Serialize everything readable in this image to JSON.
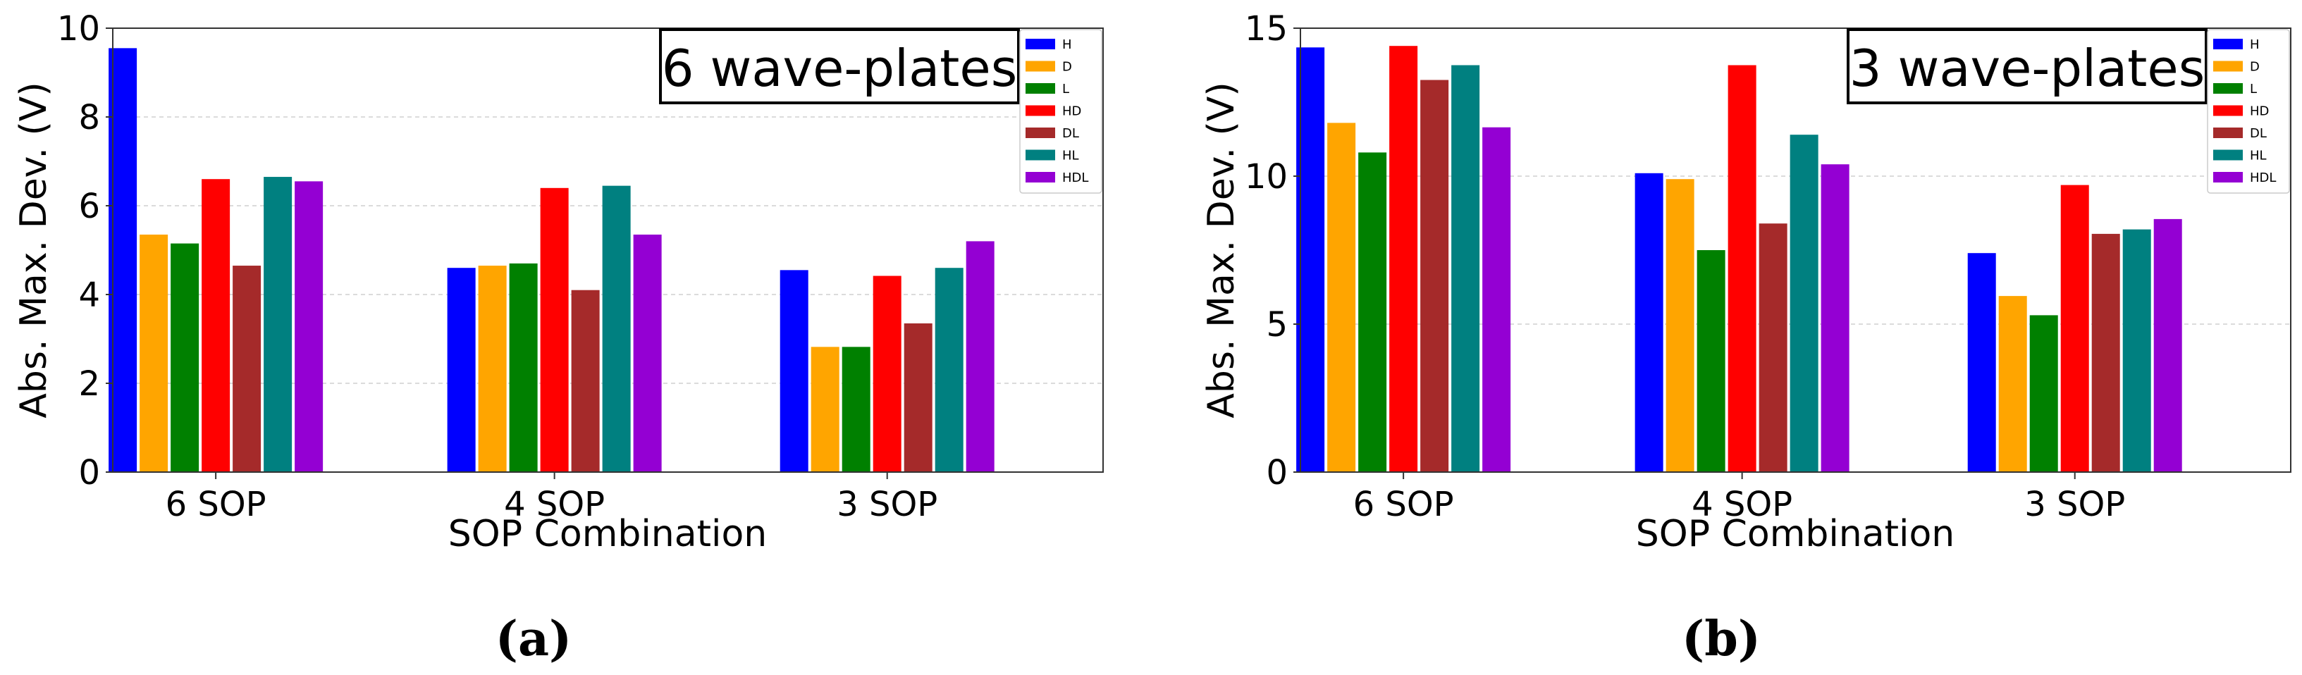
{
  "figure": {
    "captions": [
      "(a)",
      "(b)"
    ]
  },
  "legend_entries": [
    "H",
    "D",
    "L",
    "HD",
    "DL",
    "HL",
    "HDL"
  ],
  "colors": {
    "H": "#0000ff",
    "D": "#ffa500",
    "L": "#008000",
    "HD": "#ff0000",
    "DL": "#a52a2a",
    "HL": "#008080",
    "HDL": "#9400d3"
  },
  "chart_data": [
    {
      "type": "bar",
      "annotation": "6 wave-plates",
      "xlabel": "SOP Combination",
      "ylabel": "Abs. Max. Dev. (V)",
      "ylim": [
        0,
        10
      ],
      "yticks": [
        "0",
        "2",
        "4",
        "6",
        "8",
        "10"
      ],
      "categories": [
        "6 SOP",
        "4 SOP",
        "3 SOP"
      ],
      "grid": "horizontal-dashed",
      "legend_position": "top-right",
      "series": [
        {
          "name": "H",
          "values": [
            9.55,
            4.6,
            4.55
          ]
        },
        {
          "name": "D",
          "values": [
            5.35,
            4.65,
            2.82
          ]
        },
        {
          "name": "L",
          "values": [
            5.15,
            4.7,
            2.82
          ]
        },
        {
          "name": "HD",
          "values": [
            6.6,
            6.4,
            4.42
          ]
        },
        {
          "name": "DL",
          "values": [
            4.65,
            4.1,
            3.35
          ]
        },
        {
          "name": "HL",
          "values": [
            6.65,
            6.45,
            4.6
          ]
        },
        {
          "name": "HDL",
          "values": [
            6.55,
            5.35,
            5.2
          ]
        }
      ]
    },
    {
      "type": "bar",
      "annotation": "3 wave-plates",
      "xlabel": "SOP Combination",
      "ylabel": "Abs. Max. Dev. (V)",
      "ylim": [
        0,
        15
      ],
      "yticks": [
        "0",
        "5",
        "10",
        "15"
      ],
      "categories": [
        "6 SOP",
        "4 SOP",
        "3 SOP"
      ],
      "grid": "horizontal-dashed",
      "legend_position": "top-right",
      "series": [
        {
          "name": "H",
          "values": [
            14.35,
            10.1,
            7.4
          ]
        },
        {
          "name": "D",
          "values": [
            11.8,
            9.9,
            5.95
          ]
        },
        {
          "name": "L",
          "values": [
            10.8,
            7.5,
            5.3
          ]
        },
        {
          "name": "HD",
          "values": [
            14.4,
            13.75,
            9.7
          ]
        },
        {
          "name": "DL",
          "values": [
            13.25,
            8.4,
            8.05
          ]
        },
        {
          "name": "HL",
          "values": [
            13.75,
            11.4,
            8.2
          ]
        },
        {
          "name": "HDL",
          "values": [
            11.65,
            10.4,
            8.55
          ]
        }
      ]
    }
  ]
}
